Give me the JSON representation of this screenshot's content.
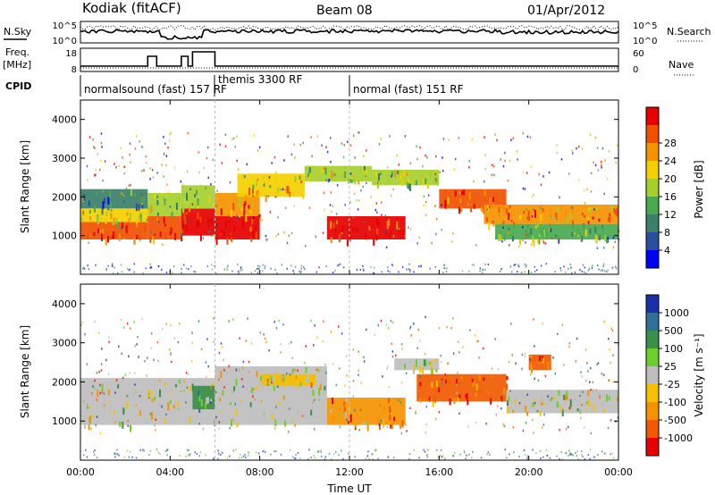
{
  "header": {
    "station": "Kodiak (fitACF)",
    "beam": "Beam 08",
    "date": "01/Apr/2012"
  },
  "strips": {
    "nsky_label": "N.Sky",
    "nsearch_label": "N.Search",
    "freq_label_top": "Freq.",
    "freq_label_unit": "[MHz]",
    "nave_label": "Nave",
    "cpid_label": "CPID",
    "noise_ticks_left": [
      "10^5",
      "10^0"
    ],
    "noise_ticks_right": [
      "10^5",
      "10^0"
    ],
    "freq_ticks": [
      "18",
      "8"
    ],
    "nave_ticks": [
      "60",
      "0"
    ],
    "cpid_segments": [
      {
        "label": "normalsound (fast) 157 RF",
        "start_hour": 0.0
      },
      {
        "label": "themis 3300 RF",
        "start_hour": 6.0
      },
      {
        "label": "normal (fast) 151 RF",
        "start_hour": 12.0
      }
    ]
  },
  "colors": {
    "power_scale": [
      "#0000ff",
      "#2b4fa0",
      "#3a7f6a",
      "#49a94f",
      "#a6cf2c",
      "#f5d000",
      "#f59200",
      "#f05000",
      "#e60000"
    ],
    "velocity_scale": [
      "#1a2fa8",
      "#2f6f9a",
      "#3a8f4a",
      "#6ccf2a",
      "#bebebe",
      "#f5c000",
      "#f59200",
      "#f05a00",
      "#e60000"
    ]
  },
  "chart_data": [
    {
      "type": "heatmap",
      "name": "power",
      "ylabel": "Slant Range [km]",
      "xlabel": "",
      "x_range_hours": [
        0,
        24
      ],
      "ylim": [
        0,
        4500
      ],
      "yticks": [
        1000,
        2000,
        3000,
        4000
      ],
      "colorbar_label": "Power [dB]",
      "colorbar_ticks": [
        "4",
        "8",
        "12",
        "16",
        "20",
        "24",
        "28"
      ],
      "bands": [
        {
          "t0": 0.0,
          "t1": 3.0,
          "r0": 900,
          "r1": 1350,
          "level": 7
        },
        {
          "t0": 0.0,
          "t1": 3.0,
          "r0": 1350,
          "r1": 1700,
          "level": 5
        },
        {
          "t0": 0.0,
          "t1": 3.0,
          "r0": 1700,
          "r1": 2200,
          "level": 2
        },
        {
          "t0": 3.0,
          "t1": 4.5,
          "r0": 900,
          "r1": 1500,
          "level": 7
        },
        {
          "t0": 3.0,
          "t1": 4.5,
          "r0": 1500,
          "r1": 2100,
          "level": 4
        },
        {
          "t0": 4.5,
          "t1": 6.0,
          "r0": 1000,
          "r1": 1700,
          "level": 8
        },
        {
          "t0": 4.5,
          "t1": 6.0,
          "r0": 1700,
          "r1": 2300,
          "level": 4
        },
        {
          "t0": 6.0,
          "t1": 8.0,
          "r0": 900,
          "r1": 1500,
          "level": 8
        },
        {
          "t0": 6.0,
          "t1": 8.0,
          "r0": 1500,
          "r1": 2100,
          "level": 6
        },
        {
          "t0": 7.0,
          "t1": 10.0,
          "r0": 2000,
          "r1": 2600,
          "level": 5
        },
        {
          "t0": 10.0,
          "t1": 13.0,
          "r0": 2400,
          "r1": 2800,
          "level": 4
        },
        {
          "t0": 11.0,
          "t1": 14.5,
          "r0": 900,
          "r1": 1500,
          "level": 8
        },
        {
          "t0": 13.0,
          "t1": 16.0,
          "r0": 2300,
          "r1": 2700,
          "level": 4
        },
        {
          "t0": 16.0,
          "t1": 19.0,
          "r0": 1700,
          "r1": 2200,
          "level": 7
        },
        {
          "t0": 18.0,
          "t1": 24.0,
          "r0": 1300,
          "r1": 1800,
          "level": 6
        },
        {
          "t0": 18.5,
          "t1": 24.0,
          "r0": 900,
          "r1": 1300,
          "level": 3
        }
      ]
    },
    {
      "type": "heatmap",
      "name": "velocity",
      "ylabel": "Slant Range [km]",
      "xlabel": "Time UT",
      "x_range_hours": [
        0,
        24
      ],
      "ylim": [
        0,
        4500
      ],
      "yticks": [
        1000,
        2000,
        3000,
        4000
      ],
      "xticks": [
        "00:00",
        "04:00",
        "08:00",
        "12:00",
        "16:00",
        "20:00",
        "00:00"
      ],
      "colorbar_label": "Velocity [m s⁻¹]",
      "colorbar_ticks": [
        "1000",
        "500",
        "100",
        "25",
        "-25",
        "-100",
        "-500",
        "-1000"
      ],
      "bands": [
        {
          "t0": 0.0,
          "t1": 6.0,
          "r0": 900,
          "r1": 2100,
          "level": 4
        },
        {
          "t0": 5.0,
          "t1": 6.0,
          "r0": 1300,
          "r1": 1900,
          "level": 2
        },
        {
          "t0": 6.0,
          "t1": 11.0,
          "r0": 900,
          "r1": 2400,
          "level": 4
        },
        {
          "t0": 8.0,
          "t1": 10.5,
          "r0": 1900,
          "r1": 2200,
          "level": 5
        },
        {
          "t0": 11.0,
          "t1": 14.5,
          "r0": 900,
          "r1": 1600,
          "level": 6
        },
        {
          "t0": 14.0,
          "t1": 16.0,
          "r0": 2300,
          "r1": 2600,
          "level": 4
        },
        {
          "t0": 15.0,
          "t1": 19.0,
          "r0": 1500,
          "r1": 2200,
          "level": 7
        },
        {
          "t0": 19.0,
          "t1": 24.0,
          "r0": 1200,
          "r1": 1800,
          "level": 4
        },
        {
          "t0": 20.0,
          "t1": 21.0,
          "r0": 2300,
          "r1": 2700,
          "level": 7
        }
      ]
    }
  ]
}
